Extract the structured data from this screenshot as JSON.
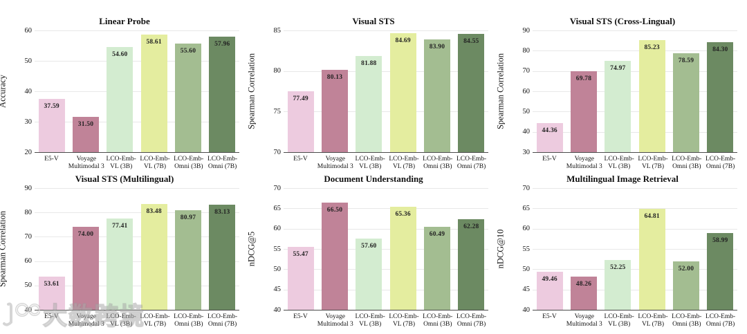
{
  "figure": {
    "description": "Benchmark comparison bar charts, 2 rows x 3 columns",
    "background": "#ffffff"
  },
  "models": [
    {
      "name": "E5-V",
      "lines": [
        "E5-V"
      ]
    },
    {
      "name": "Voyage Multimodal 3",
      "lines": [
        "Voyage",
        "Multimodal 3"
      ]
    },
    {
      "name": "LCO-Emb-VL (3B)",
      "lines": [
        "LCO-Emb-",
        "VL (3B)"
      ]
    },
    {
      "name": "LCO-Emb-VL (7B)",
      "lines": [
        "LCO-Emb-",
        "VL (7B)"
      ]
    },
    {
      "name": "LCO-Emb-Omni (3B)",
      "lines": [
        "LCO-Emb-",
        "Omni (3B)"
      ]
    },
    {
      "name": "LCO-Emb-Omni (7B)",
      "lines": [
        "LCO-Emb-",
        "Omni (7B)"
      ]
    }
  ],
  "colors": {
    "bars": [
      "#edcbdf",
      "#c08398",
      "#d3ecd0",
      "#e4ed9f",
      "#a3bd91",
      "#6c8a62"
    ],
    "grid": "#e8e8e8",
    "axis": "#4a4a4a",
    "text": "#111111",
    "value_label": "#222222"
  },
  "chart_data": [
    {
      "type": "bar",
      "title": "Linear Probe",
      "ylabel": "Accuracy",
      "ylim": [
        20,
        60
      ],
      "ytick_step": 10,
      "grid": true,
      "value_label_position": "inside-top",
      "categories": [
        "E5-V",
        "Voyage Multimodal 3",
        "LCO-Emb-VL (3B)",
        "LCO-Emb-VL (7B)",
        "LCO-Emb-Omni (3B)",
        "LCO-Emb-Omni (7B)"
      ],
      "values": [
        37.59,
        31.5,
        54.6,
        58.61,
        55.6,
        57.96
      ],
      "value_labels": [
        "37.59",
        "31.50",
        "54.60",
        "58.61",
        "55.60",
        "57.96"
      ]
    },
    {
      "type": "bar",
      "title": "Visual STS",
      "ylabel": "Spearman Correlation",
      "ylim": [
        70,
        85
      ],
      "ytick_step": 5,
      "grid": true,
      "value_label_position": "inside-top",
      "categories": [
        "E5-V",
        "Voyage Multimodal 3",
        "LCO-Emb-VL (3B)",
        "LCO-Emb-VL (7B)",
        "LCO-Emb-Omni (3B)",
        "LCO-Emb-Omni (7B)"
      ],
      "values": [
        77.49,
        80.13,
        81.88,
        84.69,
        83.9,
        84.55
      ],
      "value_labels": [
        "77.49",
        "80.13",
        "81.88",
        "84.69",
        "83.90",
        "84.55"
      ]
    },
    {
      "type": "bar",
      "title": "Visual STS (Cross-Lingual)",
      "ylabel": "Spearman Correlation",
      "ylim": [
        30,
        90
      ],
      "ytick_step": 10,
      "grid": true,
      "value_label_position": "inside-top",
      "categories": [
        "E5-V",
        "Voyage Multimodal 3",
        "LCO-Emb-VL (3B)",
        "LCO-Emb-VL (7B)",
        "LCO-Emb-Omni (3B)",
        "LCO-Emb-Omni (7B)"
      ],
      "values": [
        44.36,
        69.78,
        74.97,
        85.23,
        78.59,
        84.3
      ],
      "value_labels": [
        "44.36",
        "69.78",
        "74.97",
        "85.23",
        "78.59",
        "84.30"
      ]
    },
    {
      "type": "bar",
      "title": "Visual STS (Multilingual)",
      "ylabel": "Spearman Correlation",
      "ylim": [
        40,
        90
      ],
      "ytick_step": 10,
      "grid": true,
      "value_label_position": "inside-top",
      "categories": [
        "E5-V",
        "Voyage Multimodal 3",
        "LCO-Emb-VL (3B)",
        "LCO-Emb-VL (7B)",
        "LCO-Emb-Omni (3B)",
        "LCO-Emb-Omni (7B)"
      ],
      "values": [
        53.61,
        74.0,
        77.41,
        83.48,
        80.97,
        83.13
      ],
      "value_labels": [
        "53.61",
        "74.00",
        "77.41",
        "83.48",
        "80.97",
        "83.13"
      ]
    },
    {
      "type": "bar",
      "title": "Document Understanding",
      "ylabel": "nDCG@5",
      "ylim": [
        40,
        70
      ],
      "ytick_step": 5,
      "grid": true,
      "value_label_position": "inside-top",
      "categories": [
        "E5-V",
        "Voyage Multimodal 3",
        "LCO-Emb-VL (3B)",
        "LCO-Emb-VL (7B)",
        "LCO-Emb-Omni (3B)",
        "LCO-Emb-Omni (7B)"
      ],
      "values": [
        55.47,
        66.5,
        57.6,
        65.36,
        60.49,
        62.28
      ],
      "value_labels": [
        "55.47",
        "66.50",
        "57.60",
        "65.36",
        "60.49",
        "62.28"
      ]
    },
    {
      "type": "bar",
      "title": "Multilingual Image Retrieval",
      "ylabel": "nDCG@10",
      "ylim": [
        40,
        70
      ],
      "ytick_step": 5,
      "grid": true,
      "value_label_position": "inside-top",
      "categories": [
        "E5-V",
        "Voyage Multimodal 3",
        "LCO-Emb-VL (3B)",
        "LCO-Emb-VL (7B)",
        "LCO-Emb-Omni (3B)",
        "LCO-Emb-Omni (7B)"
      ],
      "values": [
        49.46,
        48.26,
        52.25,
        64.81,
        52.0,
        58.99
      ],
      "value_labels": [
        "49.46",
        "48.26",
        "52.25",
        "64.81",
        "52.00",
        "58.99"
      ]
    }
  ],
  "watermark": {
    "text": "大数跨境",
    "logo": "k100-logo"
  }
}
